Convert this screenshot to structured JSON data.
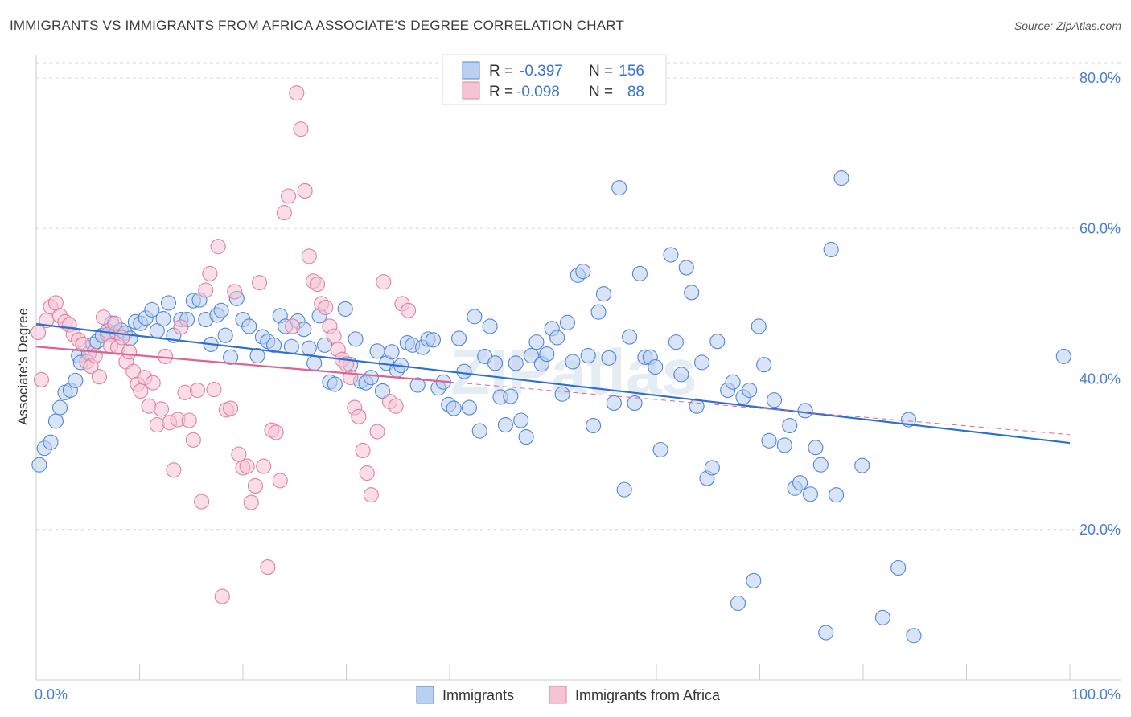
{
  "title": "IMMIGRANTS VS IMMIGRANTS FROM AFRICA ASSOCIATE'S DEGREE CORRELATION CHART",
  "source": "Source: ZipAtlas.com",
  "colors": {
    "blue": "#4f86d9",
    "blue_fill": "#b9d0f0",
    "blue_line": "#2b6fd0",
    "pink": "#e0809f",
    "pink_fill": "#f6c3d4",
    "pink_line": "#e0628e",
    "grid": "#d8d8d8",
    "tick_text": "#4a7fd0"
  },
  "legend": {
    "r_label": "R =",
    "n_label": "N =",
    "rows": [
      {
        "r": "-0.397",
        "n": "156"
      },
      {
        "r": "-0.098",
        "n": "88"
      }
    ]
  },
  "bottom_legend": [
    "Immigrants",
    "Immigrants from Africa"
  ],
  "watermark": "ZIPatlas",
  "chart_data": {
    "type": "scatter",
    "title": "IMMIGRANTS VS IMMIGRANTS FROM AFRICA ASSOCIATE'S DEGREE CORRELATION CHART",
    "xlabel": "",
    "ylabel": "Associate's Degree",
    "xlim": [
      0,
      100
    ],
    "ylim": [
      0,
      80
    ],
    "x_tick_labels": [
      "0.0%",
      "100.0%"
    ],
    "y_ticks": [
      20,
      40,
      60,
      80
    ],
    "y_tick_labels": [
      "20.0%",
      "40.0%",
      "60.0%",
      "80.0%"
    ],
    "grid": true,
    "series": [
      {
        "name": "Immigrants",
        "color": "blue",
        "trend": {
          "x": [
            0,
            100
          ],
          "y": [
            47.3,
            31.5
          ]
        },
        "points": [
          [
            0.3,
            28.6
          ],
          [
            0.8,
            30.8
          ],
          [
            1.4,
            31.6
          ],
          [
            1.9,
            34.4
          ],
          [
            2.3,
            36.2
          ],
          [
            2.8,
            38.2
          ],
          [
            3.3,
            38.5
          ],
          [
            3.8,
            39.8
          ],
          [
            4.1,
            43.1
          ],
          [
            4.3,
            42.2
          ],
          [
            5.1,
            43.4
          ],
          [
            5.5,
            44.6
          ],
          [
            5.9,
            45.0
          ],
          [
            6.4,
            45.8
          ],
          [
            6.9,
            46.4
          ],
          [
            7.3,
            47.4
          ],
          [
            7.8,
            46.2
          ],
          [
            8.2,
            46.5
          ],
          [
            8.6,
            46.1
          ],
          [
            9.1,
            45.4
          ],
          [
            9.6,
            47.6
          ],
          [
            10.1,
            47.4
          ],
          [
            10.6,
            48.1
          ],
          [
            11.2,
            49.2
          ],
          [
            11.7,
            46.4
          ],
          [
            12.3,
            48.0
          ],
          [
            12.8,
            50.1
          ],
          [
            13.3,
            45.8
          ],
          [
            14.0,
            47.9
          ],
          [
            14.6,
            47.9
          ],
          [
            15.2,
            50.4
          ],
          [
            15.8,
            50.5
          ],
          [
            16.4,
            47.9
          ],
          [
            16.9,
            44.6
          ],
          [
            17.5,
            48.5
          ],
          [
            17.9,
            49.1
          ],
          [
            18.3,
            45.8
          ],
          [
            18.8,
            42.9
          ],
          [
            19.4,
            50.7
          ],
          [
            20.0,
            47.9
          ],
          [
            20.6,
            47.0
          ],
          [
            21.4,
            43.1
          ],
          [
            21.9,
            45.6
          ],
          [
            22.4,
            45.0
          ],
          [
            23.0,
            44.5
          ],
          [
            23.6,
            48.4
          ],
          [
            24.1,
            47.0
          ],
          [
            24.7,
            44.3
          ],
          [
            25.3,
            47.7
          ],
          [
            25.9,
            46.6
          ],
          [
            26.4,
            44.1
          ],
          [
            26.9,
            42.1
          ],
          [
            27.4,
            48.4
          ],
          [
            27.9,
            44.5
          ],
          [
            28.4,
            39.6
          ],
          [
            28.9,
            39.3
          ],
          [
            29.9,
            49.3
          ],
          [
            30.4,
            41.9
          ],
          [
            30.9,
            45.3
          ],
          [
            31.4,
            39.7
          ],
          [
            31.9,
            39.5
          ],
          [
            32.4,
            40.2
          ],
          [
            33.0,
            43.7
          ],
          [
            33.5,
            38.4
          ],
          [
            33.9,
            42.1
          ],
          [
            34.4,
            43.6
          ],
          [
            34.9,
            41.2
          ],
          [
            35.3,
            41.8
          ],
          [
            35.9,
            44.8
          ],
          [
            36.4,
            44.5
          ],
          [
            36.9,
            39.2
          ],
          [
            37.4,
            44.2
          ],
          [
            37.9,
            45.3
          ],
          [
            38.4,
            45.2
          ],
          [
            38.9,
            38.8
          ],
          [
            39.4,
            39.6
          ],
          [
            39.9,
            36.6
          ],
          [
            40.4,
            36.1
          ],
          [
            40.9,
            45.4
          ],
          [
            41.4,
            41.0
          ],
          [
            41.9,
            36.2
          ],
          [
            42.4,
            48.3
          ],
          [
            42.9,
            33.1
          ],
          [
            43.4,
            43.0
          ],
          [
            43.9,
            47.0
          ],
          [
            44.4,
            42.1
          ],
          [
            44.9,
            37.6
          ],
          [
            45.4,
            33.9
          ],
          [
            45.9,
            37.7
          ],
          [
            46.4,
            42.1
          ],
          [
            46.9,
            34.5
          ],
          [
            47.4,
            32.3
          ],
          [
            47.9,
            43.1
          ],
          [
            48.4,
            44.9
          ],
          [
            48.9,
            42.0
          ],
          [
            49.4,
            43.3
          ],
          [
            49.9,
            46.7
          ],
          [
            50.4,
            45.5
          ],
          [
            50.9,
            38.0
          ],
          [
            51.4,
            47.5
          ],
          [
            51.9,
            42.3
          ],
          [
            52.4,
            53.8
          ],
          [
            52.9,
            54.3
          ],
          [
            53.4,
            43.1
          ],
          [
            53.9,
            33.8
          ],
          [
            54.4,
            48.9
          ],
          [
            54.9,
            51.3
          ],
          [
            55.4,
            42.8
          ],
          [
            55.9,
            36.8
          ],
          [
            56.4,
            65.4
          ],
          [
            56.9,
            25.3
          ],
          [
            57.4,
            45.6
          ],
          [
            57.9,
            36.8
          ],
          [
            58.4,
            54.0
          ],
          [
            58.9,
            42.9
          ],
          [
            59.4,
            42.9
          ],
          [
            59.9,
            41.6
          ],
          [
            60.4,
            30.6
          ],
          [
            61.4,
            56.5
          ],
          [
            61.9,
            44.9
          ],
          [
            62.4,
            40.6
          ],
          [
            62.9,
            54.8
          ],
          [
            63.4,
            51.5
          ],
          [
            63.9,
            36.4
          ],
          [
            64.4,
            42.2
          ],
          [
            64.9,
            26.8
          ],
          [
            65.4,
            28.2
          ],
          [
            65.9,
            45.0
          ],
          [
            66.9,
            38.5
          ],
          [
            67.4,
            39.6
          ],
          [
            67.9,
            10.2
          ],
          [
            68.4,
            37.6
          ],
          [
            69.4,
            13.2
          ],
          [
            69.9,
            47.0
          ],
          [
            70.4,
            41.9
          ],
          [
            70.9,
            31.8
          ],
          [
            71.4,
            37.2
          ],
          [
            72.4,
            31.2
          ],
          [
            72.9,
            33.8
          ],
          [
            73.4,
            25.5
          ],
          [
            73.9,
            26.2
          ],
          [
            74.4,
            35.8
          ],
          [
            74.9,
            24.7
          ],
          [
            75.4,
            30.9
          ],
          [
            75.9,
            28.6
          ],
          [
            76.4,
            6.3
          ],
          [
            76.9,
            57.2
          ],
          [
            77.4,
            24.6
          ],
          [
            77.9,
            66.7
          ],
          [
            79.9,
            28.5
          ],
          [
            81.9,
            8.3
          ],
          [
            83.4,
            14.9
          ],
          [
            84.4,
            34.6
          ],
          [
            84.9,
            5.9
          ],
          [
            99.4,
            43.0
          ],
          [
            69.0,
            38.5
          ]
        ]
      },
      {
        "name": "Immigrants from Africa",
        "color": "pink",
        "trend": {
          "x": [
            0,
            40
          ],
          "y": [
            44.3,
            39.6
          ]
        },
        "trend_dashed": {
          "x": [
            40,
            100
          ],
          "y": [
            39.6,
            32.6
          ]
        },
        "points": [
          [
            0.2,
            46.2
          ],
          [
            0.5,
            39.9
          ],
          [
            1.0,
            47.8
          ],
          [
            1.4,
            49.6
          ],
          [
            1.9,
            50.1
          ],
          [
            2.3,
            48.4
          ],
          [
            2.8,
            47.6
          ],
          [
            3.2,
            47.2
          ],
          [
            3.6,
            45.9
          ],
          [
            4.1,
            45.2
          ],
          [
            4.5,
            44.6
          ],
          [
            4.9,
            42.3
          ],
          [
            5.3,
            41.7
          ],
          [
            5.7,
            43.1
          ],
          [
            6.1,
            40.3
          ],
          [
            6.5,
            48.2
          ],
          [
            6.9,
            45.9
          ],
          [
            7.2,
            44.4
          ],
          [
            7.6,
            47.4
          ],
          [
            7.9,
            44.2
          ],
          [
            8.3,
            45.5
          ],
          [
            8.7,
            42.3
          ],
          [
            9.0,
            43.6
          ],
          [
            9.4,
            41.0
          ],
          [
            9.8,
            39.3
          ],
          [
            10.1,
            38.4
          ],
          [
            10.5,
            40.2
          ],
          [
            10.9,
            36.4
          ],
          [
            11.3,
            39.5
          ],
          [
            11.7,
            33.9
          ],
          [
            12.1,
            36.0
          ],
          [
            12.5,
            43.0
          ],
          [
            12.9,
            34.2
          ],
          [
            13.3,
            27.9
          ],
          [
            13.7,
            34.6
          ],
          [
            14.0,
            46.9
          ],
          [
            14.4,
            38.2
          ],
          [
            14.8,
            34.5
          ],
          [
            15.2,
            31.9
          ],
          [
            15.6,
            38.5
          ],
          [
            16.0,
            23.7
          ],
          [
            16.4,
            51.8
          ],
          [
            16.8,
            54.0
          ],
          [
            17.2,
            38.6
          ],
          [
            17.6,
            57.6
          ],
          [
            18.0,
            11.1
          ],
          [
            18.4,
            35.9
          ],
          [
            18.8,
            36.1
          ],
          [
            19.2,
            51.6
          ],
          [
            19.6,
            30.0
          ],
          [
            20.0,
            28.2
          ],
          [
            20.4,
            28.4
          ],
          [
            20.8,
            23.6
          ],
          [
            21.2,
            25.8
          ],
          [
            21.6,
            52.8
          ],
          [
            22.0,
            28.4
          ],
          [
            22.4,
            15.0
          ],
          [
            22.8,
            33.2
          ],
          [
            23.2,
            32.9
          ],
          [
            23.6,
            26.5
          ],
          [
            24.0,
            62.1
          ],
          [
            24.4,
            64.3
          ],
          [
            24.8,
            47.0
          ],
          [
            25.2,
            78.0
          ],
          [
            25.6,
            73.2
          ],
          [
            26.0,
            65.0
          ],
          [
            26.4,
            56.3
          ],
          [
            26.8,
            53.0
          ],
          [
            27.2,
            52.6
          ],
          [
            27.6,
            50.0
          ],
          [
            28.0,
            49.5
          ],
          [
            28.4,
            47.0
          ],
          [
            28.8,
            45.7
          ],
          [
            29.2,
            43.9
          ],
          [
            29.6,
            42.6
          ],
          [
            30.0,
            42.0
          ],
          [
            30.4,
            40.2
          ],
          [
            30.8,
            36.2
          ],
          [
            31.2,
            35.0
          ],
          [
            31.6,
            30.5
          ],
          [
            32.0,
            27.5
          ],
          [
            32.4,
            24.6
          ],
          [
            33.0,
            33.0
          ],
          [
            33.6,
            52.9
          ],
          [
            34.2,
            37.0
          ],
          [
            34.8,
            36.4
          ],
          [
            35.4,
            50.0
          ],
          [
            36.0,
            49.1
          ]
        ]
      }
    ]
  }
}
